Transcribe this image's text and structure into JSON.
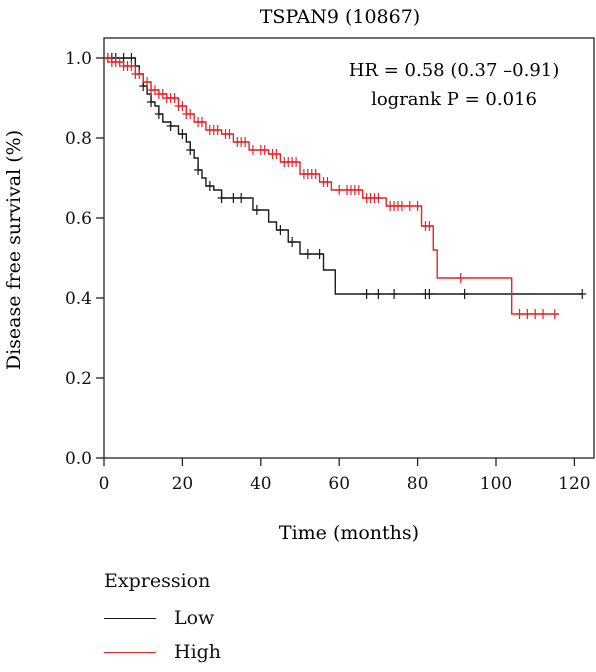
{
  "chart_data": {
    "type": "line",
    "title": "TSPAN9 (10867)",
    "xlabel": "Time (months)",
    "ylabel": "Disease free survival (%)",
    "xlim": [
      0,
      125
    ],
    "ylim": [
      0,
      1.05
    ],
    "xticks": [
      0,
      20,
      40,
      60,
      80,
      100,
      120
    ],
    "yticks": [
      0.0,
      0.2,
      0.4,
      0.6,
      0.8,
      1.0
    ],
    "annotation": [
      "HR = 0.58 (0.37 –0.91)",
      "logrank P = 0.016"
    ],
    "grid": false,
    "legend_title": "Expression",
    "legend_position": "bottom-left",
    "series": [
      {
        "name": "Low",
        "color": "#1a1a1a",
        "steps": [
          [
            0,
            1.0
          ],
          [
            8,
            0.98
          ],
          [
            9,
            0.96
          ],
          [
            10,
            0.93
          ],
          [
            11,
            0.91
          ],
          [
            12,
            0.89
          ],
          [
            13,
            0.88
          ],
          [
            14,
            0.86
          ],
          [
            15,
            0.84
          ],
          [
            17,
            0.83
          ],
          [
            19,
            0.81
          ],
          [
            21,
            0.79
          ],
          [
            22,
            0.77
          ],
          [
            23,
            0.75
          ],
          [
            24,
            0.72
          ],
          [
            25,
            0.7
          ],
          [
            26,
            0.68
          ],
          [
            28,
            0.67
          ],
          [
            30,
            0.65
          ],
          [
            38,
            0.62
          ],
          [
            42,
            0.59
          ],
          [
            44,
            0.57
          ],
          [
            47,
            0.54
          ],
          [
            50,
            0.51
          ],
          [
            56,
            0.47
          ],
          [
            59,
            0.41
          ],
          [
            122,
            0.41
          ]
        ],
        "censor_x": [
          1,
          2,
          3,
          5,
          7,
          10,
          12,
          14,
          17,
          20,
          22,
          24,
          27,
          30,
          33,
          35,
          39,
          45,
          48,
          52,
          55,
          67,
          70,
          74,
          82,
          83,
          92,
          122
        ]
      },
      {
        "name": "High",
        "color": "#e3262b",
        "steps": [
          [
            0,
            1.0
          ],
          [
            2,
            0.99
          ],
          [
            5,
            0.98
          ],
          [
            8,
            0.96
          ],
          [
            10,
            0.94
          ],
          [
            12,
            0.92
          ],
          [
            14,
            0.91
          ],
          [
            16,
            0.9
          ],
          [
            19,
            0.88
          ],
          [
            21,
            0.86
          ],
          [
            23,
            0.84
          ],
          [
            26,
            0.82
          ],
          [
            30,
            0.81
          ],
          [
            33,
            0.79
          ],
          [
            37,
            0.77
          ],
          [
            42,
            0.76
          ],
          [
            45,
            0.74
          ],
          [
            50,
            0.71
          ],
          [
            55,
            0.69
          ],
          [
            58,
            0.67
          ],
          [
            66,
            0.65
          ],
          [
            72,
            0.63
          ],
          [
            81,
            0.58
          ],
          [
            84,
            0.52
          ],
          [
            85,
            0.45
          ],
          [
            104,
            0.36
          ],
          [
            116,
            0.36
          ]
        ],
        "censor_x": [
          1,
          2,
          3,
          4,
          5,
          6,
          7,
          8,
          9,
          11,
          12,
          13,
          14,
          15,
          16,
          17,
          18,
          19,
          20,
          21,
          22,
          24,
          25,
          27,
          28,
          29,
          31,
          32,
          34,
          35,
          36,
          38,
          40,
          41,
          43,
          44,
          46,
          47,
          48,
          49,
          51,
          52,
          53,
          54,
          56,
          57,
          60,
          62,
          63,
          64,
          65,
          67,
          68,
          69,
          70,
          73,
          74,
          75,
          76,
          78,
          80,
          82,
          83,
          91,
          106,
          108,
          110,
          112,
          115
        ]
      }
    ]
  }
}
